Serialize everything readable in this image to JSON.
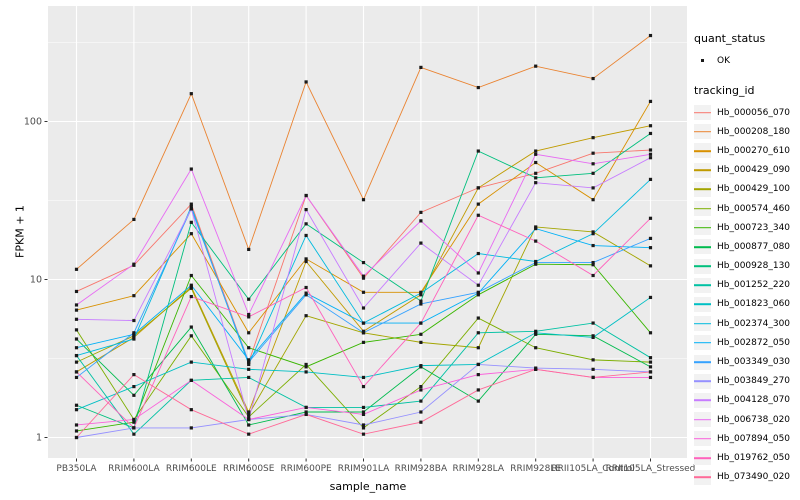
{
  "legend": {
    "quant_status_title": "quant_status",
    "quant_status_items": [
      {
        "label": "OK",
        "marker": "point"
      }
    ],
    "tracking_id_title": "tracking_id"
  },
  "chart_data": {
    "type": "line",
    "title": "",
    "xlabel": "sample_name",
    "ylabel": "FPKM + 1",
    "y_scale": "log10",
    "ylim": [
      1,
      400
    ],
    "y_ticks": [
      1,
      10,
      100
    ],
    "y_tick_labels": [
      "1",
      "10",
      "100"
    ],
    "y_minor_ticks": [
      3.1623,
      31.623,
      316.23
    ],
    "grid": true,
    "legend_position": "right",
    "panel_background": "#EBEBEB",
    "gridline_color": "#FFFFFF",
    "point_color": "#1a1a1a",
    "axis_text_color": "#4D4D4D",
    "x_categories": [
      "PB350LA",
      "RRIM600LA",
      "RRIM600LE",
      "RRIM600SE",
      "RRIM600PE",
      "RRIM901LA",
      "RRIM928BA",
      "RRIM928LA",
      "RRIM928LE",
      "RRII105LA_Control",
      "RRII105LA_Stressed"
    ],
    "series": [
      {
        "name": "Hb_000056_070",
        "color": "#F8766D",
        "values": [
          8.4,
          12.3,
          30,
          3.0,
          34,
          10.2,
          26.6,
          38,
          47,
          63,
          66
        ]
      },
      {
        "name": "Hb_000208_180",
        "color": "#EA8331",
        "values": [
          11.6,
          24,
          150,
          15.5,
          178,
          32,
          220,
          164,
          224,
          187,
          350
        ]
      },
      {
        "name": "Hb_000270_610",
        "color": "#D89000",
        "values": [
          6.4,
          7.9,
          19.5,
          4.6,
          13.5,
          8.3,
          8.3,
          30,
          55,
          32,
          134
        ]
      },
      {
        "name": "Hb_000429_090",
        "color": "#C09B00",
        "values": [
          2.6,
          4.3,
          9.0,
          1.45,
          13,
          4.7,
          8.0,
          38,
          65,
          79,
          94
        ]
      },
      {
        "name": "Hb_000429_100",
        "color": "#A3A500",
        "values": [
          3.0,
          4.4,
          8.8,
          1.4,
          5.9,
          4.6,
          4.0,
          3.7,
          21.5,
          20,
          12.2
        ]
      },
      {
        "name": "Hb_000574_460",
        "color": "#7CAE00",
        "values": [
          4.8,
          1.3,
          4.4,
          1.35,
          2.9,
          1.15,
          2.1,
          5.7,
          3.7,
          3.1,
          3.0
        ]
      },
      {
        "name": "Hb_000723_340",
        "color": "#39B600",
        "values": [
          1.1,
          1.25,
          10.6,
          3.7,
          2.8,
          4.0,
          4.5,
          8.0,
          12.5,
          12.4,
          4.6
        ]
      },
      {
        "name": "Hb_000877_080",
        "color": "#00BB4E",
        "values": [
          4.2,
          1.85,
          5.0,
          1.2,
          1.45,
          1.45,
          2.8,
          1.7,
          4.5,
          4.4,
          2.8
        ]
      },
      {
        "name": "Hb_000928_130",
        "color": "#00BF7D",
        "values": [
          1.6,
          1.15,
          23,
          7.5,
          22.5,
          12.8,
          7.3,
          65,
          44,
          47,
          84
        ]
      },
      {
        "name": "Hb_001252_220",
        "color": "#00C1A3",
        "values": [
          3.3,
          1.05,
          2.3,
          2.4,
          1.55,
          1.55,
          1.7,
          4.6,
          4.7,
          5.3,
          3.2
        ]
      },
      {
        "name": "Hb_001823_060",
        "color": "#00BFC4",
        "values": [
          1.5,
          2.1,
          3.0,
          2.7,
          2.6,
          2.4,
          2.85,
          2.9,
          4.6,
          4.3,
          7.7
        ]
      },
      {
        "name": "Hb_002374_300",
        "color": "#00BADE",
        "values": [
          3.3,
          4.2,
          29,
          2.9,
          19,
          5.3,
          8.2,
          14.6,
          13,
          19.5,
          43
        ]
      },
      {
        "name": "Hb_002872_050",
        "color": "#00B0F6",
        "values": [
          3.7,
          4.5,
          9.2,
          3.1,
          8.2,
          5.3,
          5.3,
          8.2,
          21,
          16.4,
          15.9
        ]
      },
      {
        "name": "Hb_003349_030",
        "color": "#35A2FF",
        "values": [
          2.4,
          4.6,
          28,
          3.0,
          8.0,
          4.6,
          7.0,
          8.3,
          12.8,
          12.8,
          18.2
        ]
      },
      {
        "name": "Hb_003849_270",
        "color": "#9590FF",
        "values": [
          1.0,
          1.15,
          1.15,
          1.3,
          1.4,
          1.2,
          1.45,
          2.9,
          2.75,
          2.7,
          2.6
        ]
      },
      {
        "name": "Hb_004128_070",
        "color": "#C77CFF",
        "values": [
          5.6,
          5.5,
          28,
          1.3,
          27.7,
          6.6,
          17,
          9.2,
          41,
          38,
          59
        ]
      },
      {
        "name": "Hb_006738_020",
        "color": "#E76BF3",
        "values": [
          6.9,
          12.5,
          50,
          6.0,
          34,
          10.5,
          23.5,
          11,
          62,
          54,
          62
        ]
      },
      {
        "name": "Hb_007894_050",
        "color": "#FA62DB",
        "values": [
          1.2,
          1.3,
          2.3,
          1.3,
          1.55,
          1.4,
          2.0,
          2.5,
          2.7,
          2.4,
          2.4
        ]
      },
      {
        "name": "Hb_019762_050",
        "color": "#FF62BC",
        "values": [
          2.6,
          1.15,
          7.8,
          5.8,
          8.9,
          2.1,
          5.3,
          25.5,
          17.5,
          10.6,
          24.4
        ]
      },
      {
        "name": "Hb_073490_020",
        "color": "#FF6A98",
        "values": [
          1.0,
          2.5,
          1.5,
          1.05,
          1.4,
          1.05,
          1.25,
          2.0,
          2.7,
          2.4,
          2.6
        ]
      }
    ]
  }
}
